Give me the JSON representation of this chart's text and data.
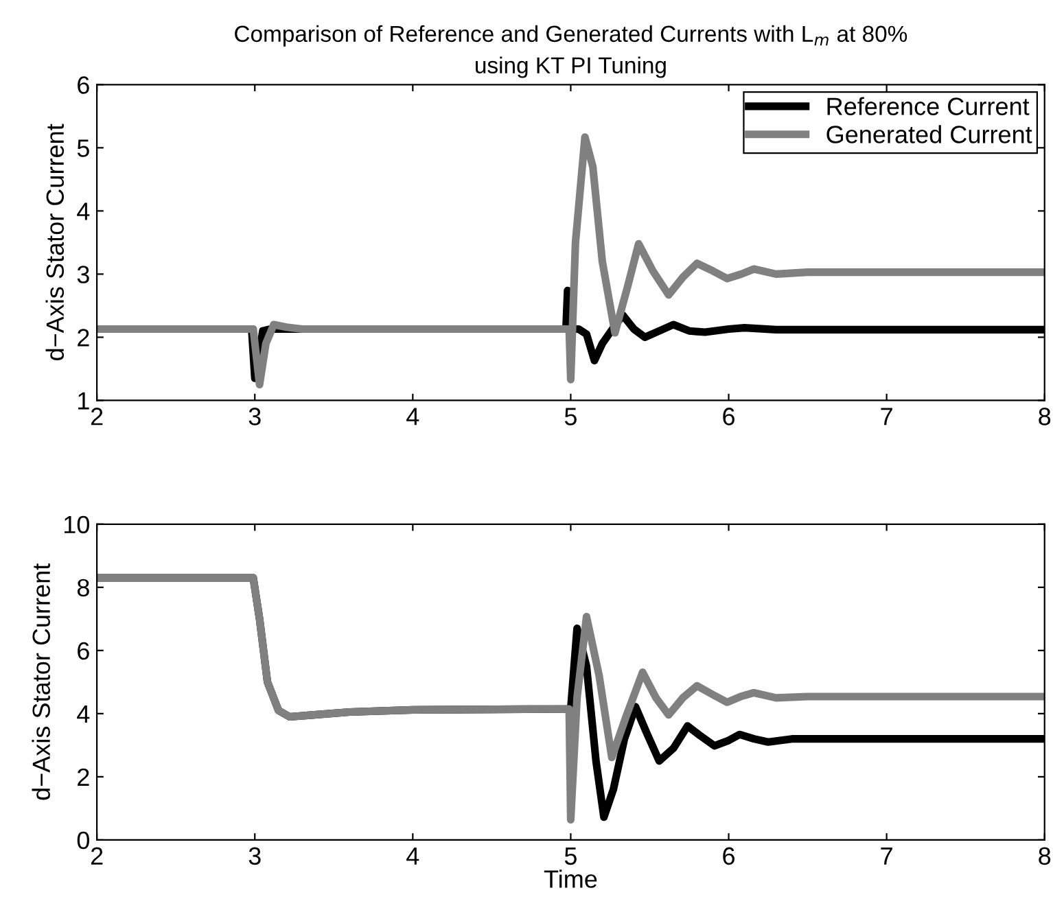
{
  "chart_data": [
    {
      "type": "line",
      "title": "Comparison of Reference and Generated Currents with L$_{m}$ at 80%\nusing KT PI Tuning",
      "ylabel": "d−Axis Stator Current",
      "xlim": [
        2,
        8
      ],
      "xticks": [
        2,
        3,
        4,
        5,
        6,
        7,
        8
      ],
      "ylim": [
        1,
        6
      ],
      "yticks": [
        1,
        2,
        3,
        4,
        5,
        6
      ],
      "grid": false,
      "legend": "top right",
      "series": [
        {
          "name": "Reference Current",
          "color": "#000000",
          "x": [
            2,
            2.98,
            3.0,
            3.02,
            3.05,
            3.1,
            4.97,
            4.98,
            5.0,
            5.05,
            5.1,
            5.15,
            5.2,
            5.27,
            5.33,
            5.4,
            5.47,
            5.56,
            5.65,
            5.75,
            5.85,
            6.0,
            6.1,
            6.3,
            8
          ],
          "values": [
            2.13,
            2.13,
            1.35,
            1.6,
            2.1,
            2.13,
            2.13,
            2.74,
            2.13,
            2.13,
            2.05,
            1.63,
            1.9,
            2.15,
            2.35,
            2.13,
            2.0,
            2.1,
            2.2,
            2.1,
            2.08,
            2.13,
            2.15,
            2.12,
            2.12
          ]
        },
        {
          "name": "Generated Current",
          "color": "#808080",
          "x": [
            2,
            2.99,
            3.03,
            3.07,
            3.12,
            3.2,
            3.3,
            4.99,
            5.0,
            5.03,
            5.09,
            5.14,
            5.2,
            5.28,
            5.36,
            5.43,
            5.52,
            5.62,
            5.71,
            5.8,
            5.9,
            5.99,
            6.08,
            6.16,
            6.3,
            6.5,
            8
          ],
          "values": [
            2.13,
            2.13,
            1.25,
            1.9,
            2.2,
            2.16,
            2.13,
            2.13,
            1.33,
            3.5,
            5.17,
            4.7,
            3.2,
            2.07,
            2.8,
            3.48,
            3.05,
            2.67,
            2.95,
            3.17,
            3.05,
            2.93,
            3.0,
            3.08,
            3.0,
            3.03,
            3.03
          ]
        }
      ]
    },
    {
      "type": "line",
      "xlabel": "Time",
      "ylabel": "d−Axis Stator Current",
      "xlim": [
        2,
        8
      ],
      "xticks": [
        2,
        3,
        4,
        5,
        6,
        7,
        8
      ],
      "ylim": [
        0,
        10
      ],
      "yticks": [
        0,
        2,
        4,
        6,
        8,
        10
      ],
      "grid": false,
      "legend": false,
      "series": [
        {
          "color": "#000000",
          "x": [
            2,
            2.99,
            3.03,
            3.08,
            3.15,
            3.22,
            3.35,
            3.6,
            4.0,
            4.99,
            5.0,
            5.04,
            5.1,
            5.16,
            5.21,
            5.27,
            5.34,
            5.41,
            5.48,
            5.56,
            5.65,
            5.74,
            5.82,
            5.91,
            6.0,
            6.07,
            6.16,
            6.25,
            6.4,
            8
          ],
          "values": [
            8.3,
            8.3,
            7.0,
            5.0,
            4.1,
            3.9,
            3.95,
            4.05,
            4.12,
            4.15,
            4.15,
            6.7,
            5.5,
            2.5,
            0.72,
            1.6,
            3.2,
            4.22,
            3.4,
            2.5,
            2.9,
            3.61,
            3.3,
            2.98,
            3.15,
            3.34,
            3.2,
            3.1,
            3.2,
            3.2
          ]
        },
        {
          "color": "#808080",
          "x": [
            2,
            2.99,
            3.03,
            3.08,
            3.15,
            3.22,
            3.35,
            3.6,
            4.0,
            4.99,
            5.0,
            5.04,
            5.1,
            5.18,
            5.26,
            5.35,
            5.455,
            5.54,
            5.62,
            5.71,
            5.8,
            5.9,
            5.99,
            6.08,
            6.16,
            6.3,
            6.5,
            8
          ],
          "values": [
            8.3,
            8.3,
            7.0,
            5.0,
            4.1,
            3.9,
            3.95,
            4.05,
            4.12,
            4.15,
            0.64,
            4.5,
            7.07,
            5.2,
            2.61,
            3.9,
            5.31,
            4.5,
            3.96,
            4.5,
            4.88,
            4.6,
            4.36,
            4.55,
            4.66,
            4.5,
            4.54,
            4.54
          ]
        }
      ]
    }
  ]
}
